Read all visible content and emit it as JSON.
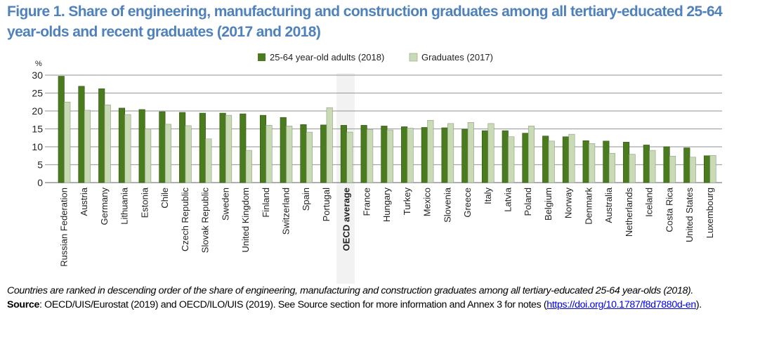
{
  "figure": {
    "title": "Figure 1. Share of engineering, manufacturing and construction graduates among all tertiary-educated 25-64 year-olds and recent graduates (2017 and 2018)",
    "note": "Countries are ranked in descending order of the share of engineering, manufacturing and construction graduates among all tertiary-educated 25-64 year-olds (2018).",
    "source_label": "Source",
    "source_text": ": OECD/UIS/Eurostat (2019) and OECD/ILO/UIS (2019). See Source section for more information and Annex 3 for notes (",
    "source_link": "https://doi.org/10.1787/f8d7880d-en",
    "source_end": ")."
  },
  "colors": {
    "adults": "#4a7c1f",
    "graduates": "#c8dbb5",
    "gridline": "#a6a6a6",
    "title": "#4f81bd",
    "highlight": "#f2f2f2"
  },
  "chart_data": {
    "type": "bar",
    "title": "Share of engineering, manufacturing and construction graduates among all tertiary-educated 25-64 year-olds and recent graduates (2017 and 2018)",
    "xlabel": "",
    "ylabel": "%",
    "ylim": [
      0,
      30
    ],
    "yticks": [
      0,
      5,
      10,
      15,
      20,
      25,
      30
    ],
    "grid": true,
    "legend_position": "top-center",
    "highlight_category": "OECD average",
    "categories": [
      "Russian Federation",
      "Austria",
      "Germany",
      "Lithuania",
      "Estonia",
      "Chile",
      "Czech Republic",
      "Slovak Republic",
      "Sweden",
      "United Kingdom",
      "Finland",
      "Switzerland",
      "Spain",
      "Portugal",
      "OECD average",
      "France",
      "Hungary",
      "Turkey",
      "Mexico",
      "Slovenia",
      "Greece",
      "Italy",
      "Latvia",
      "Poland",
      "Belgium",
      "Norway",
      "Denmark",
      "Australia",
      "Netherlands",
      "Iceland",
      "Costa Rica",
      "United States",
      "Luxembourg"
    ],
    "series": [
      {
        "name": "25-64 year-old adults (2018)",
        "values": [
          29.7,
          26.9,
          26.2,
          20.8,
          20.4,
          19.8,
          19.6,
          19.4,
          19.4,
          19.2,
          18.8,
          18.2,
          16.2,
          16.1,
          16.0,
          16.0,
          15.8,
          15.6,
          15.4,
          15.3,
          14.9,
          14.5,
          14.5,
          13.8,
          13.0,
          12.8,
          11.7,
          11.6,
          11.3,
          10.5,
          10.0,
          9.7,
          7.5
        ]
      },
      {
        "name": "Graduates (2017)",
        "values": [
          22.5,
          20.2,
          21.7,
          19.0,
          15.0,
          16.3,
          15.9,
          12.2,
          18.8,
          9.0,
          16.0,
          15.8,
          14.1,
          20.9,
          14.1,
          14.8,
          14.7,
          15.2,
          17.4,
          16.5,
          16.8,
          16.5,
          12.8,
          15.8,
          11.6,
          13.5,
          10.9,
          8.2,
          7.9,
          9.0,
          7.4,
          7.1,
          7.6
        ]
      }
    ]
  }
}
